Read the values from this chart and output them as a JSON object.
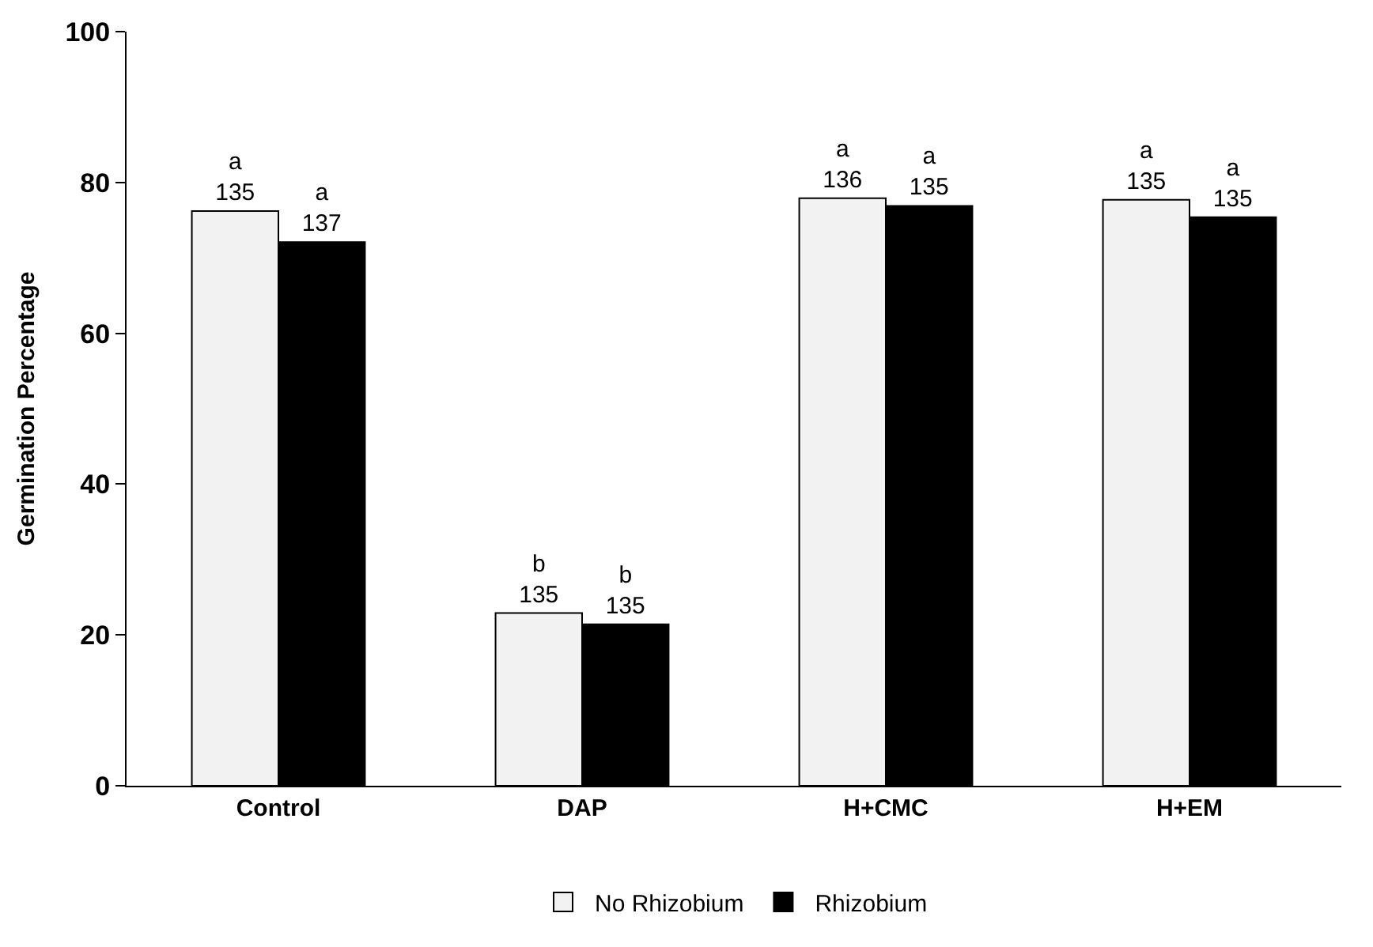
{
  "chart_data": {
    "type": "bar",
    "ylabel": "Germination Percentage",
    "categories": [
      "Control",
      "DAP",
      "H+CMC",
      "H+EM"
    ],
    "series": [
      {
        "name": "No Rhizobium",
        "color": "#f2f2f2",
        "values": [
          76.2,
          22.9,
          77.9,
          77.7
        ],
        "value_labels": [
          "a\n135",
          "b\n135",
          "a\n136",
          "a\n135"
        ]
      },
      {
        "name": "Rhizobium",
        "color": "#000000",
        "values": [
          72.1,
          21.4,
          76.9,
          75.4
        ],
        "value_labels": [
          "a\n137",
          "b\n135",
          "a\n135",
          "a\n135"
        ]
      }
    ],
    "ylim": [
      0,
      100
    ],
    "yticks": [
      0,
      20,
      40,
      60,
      80,
      100
    ],
    "legend": "bottom"
  }
}
